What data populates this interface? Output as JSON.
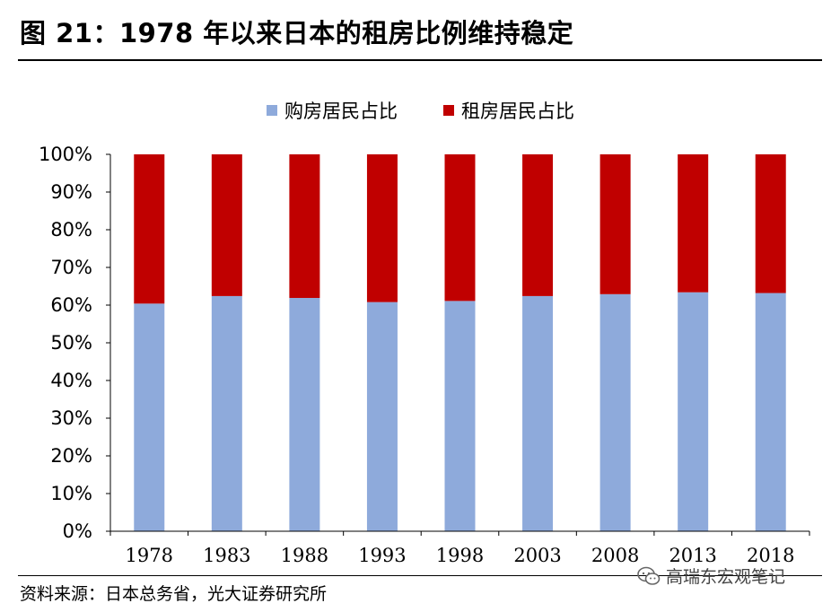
{
  "title": "图 21：1978 年以来日本的租房比例维持稳定",
  "source": "资料来源：日本总务省，光大证券研究所",
  "watermark": "高瑞东宏观笔记",
  "chart_data": {
    "type": "bar",
    "stacked": true,
    "categories": [
      "1978",
      "1983",
      "1988",
      "1993",
      "1998",
      "2003",
      "2008",
      "2013",
      "2018"
    ],
    "series": [
      {
        "name": "购房居民占比",
        "color": "#8eaadb",
        "values": [
          60.4,
          62.4,
          61.9,
          60.8,
          61.1,
          62.4,
          62.9,
          63.4,
          63.2
        ]
      },
      {
        "name": "租房居民占比",
        "color": "#c00000",
        "values": [
          39.6,
          37.6,
          38.1,
          39.2,
          38.9,
          37.6,
          37.1,
          36.6,
          36.8
        ]
      }
    ],
    "y_ticks": [
      "0%",
      "10%",
      "20%",
      "30%",
      "40%",
      "50%",
      "60%",
      "70%",
      "80%",
      "90%",
      "100%"
    ],
    "ylim": [
      0,
      100
    ],
    "grid": false,
    "legend_position": "top-center"
  }
}
